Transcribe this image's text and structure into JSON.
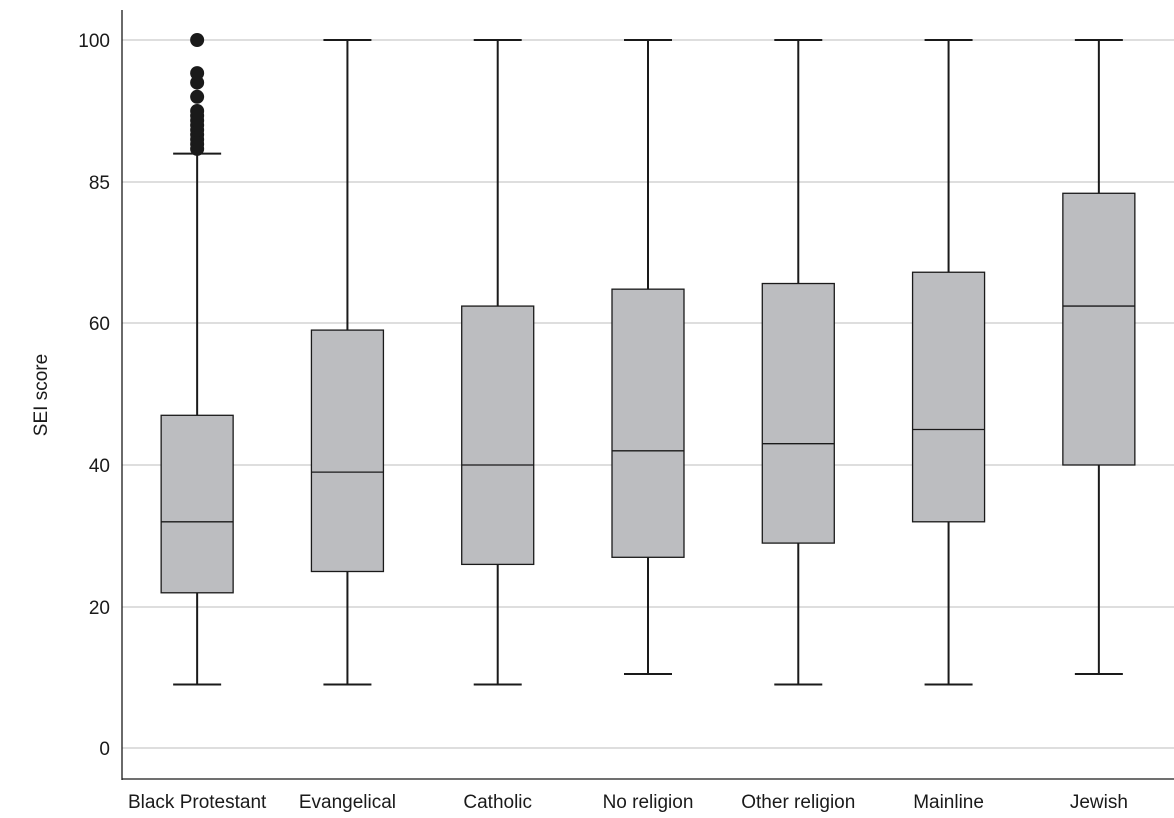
{
  "chart_data": {
    "type": "box",
    "title": "",
    "xlabel": "",
    "ylabel": "SEI score",
    "y_ticks": [
      "0",
      "20",
      "40",
      "60",
      "85",
      "100"
    ],
    "grid": "horizontal",
    "colors": {
      "box_fill": "#bcbdc0",
      "line": "#1a1a1a",
      "grid": "#bdbdbd"
    },
    "categories": [
      "Black Protestant",
      "Evangelical",
      "Catholic",
      "No religion",
      "Other religion",
      "Mainline",
      "Jewish"
    ],
    "boxes": [
      {
        "category": "Black Protestant",
        "whisker_low": 9,
        "q1": 22,
        "median": 32,
        "q3": 47,
        "whisker_high": 88,
        "outliers": [
          88.5,
          89,
          89.5,
          90,
          90.5,
          91,
          91.5,
          92,
          92.5,
          94,
          95.5,
          96.5,
          100
        ]
      },
      {
        "category": "Evangelical",
        "whisker_low": 9,
        "q1": 25,
        "median": 39,
        "q3": 59,
        "whisker_high": 100,
        "outliers": []
      },
      {
        "category": "Catholic",
        "whisker_low": 9,
        "q1": 26,
        "median": 40,
        "q3": 63,
        "whisker_high": 100,
        "outliers": []
      },
      {
        "category": "No religion",
        "whisker_low": 10.5,
        "q1": 27,
        "median": 42,
        "q3": 66,
        "whisker_high": 100,
        "outliers": []
      },
      {
        "category": "Other religion",
        "whisker_low": 9,
        "q1": 29,
        "median": 43,
        "q3": 67,
        "whisker_high": 100,
        "outliers": []
      },
      {
        "category": "Mainline",
        "whisker_low": 9,
        "q1": 32,
        "median": 45,
        "q3": 69,
        "whisker_high": 100,
        "outliers": []
      },
      {
        "category": "Jewish",
        "whisker_low": 10.5,
        "q1": 40,
        "median": 63,
        "q3": 83,
        "whisker_high": 100,
        "outliers": []
      }
    ]
  }
}
